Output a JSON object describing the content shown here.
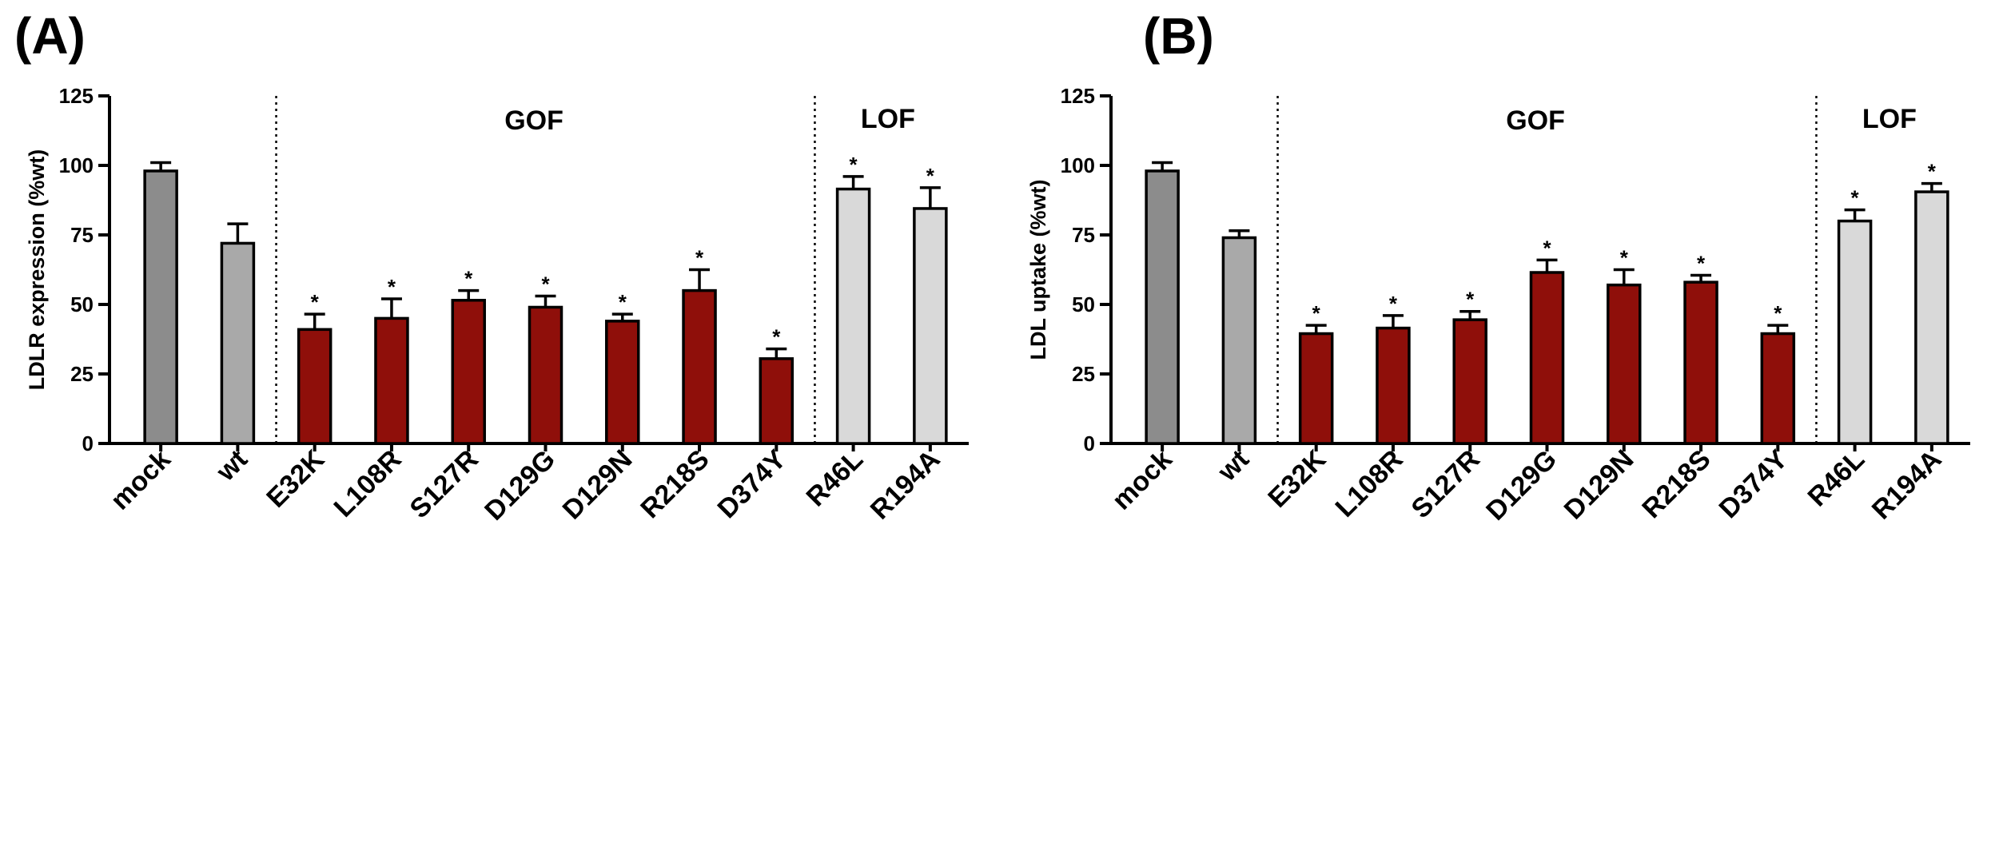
{
  "chart_data": [
    {
      "panel": "(A)",
      "type": "bar",
      "title": "",
      "xlabel": "",
      "ylabel": "LDLR expression (%wt)",
      "ylim": [
        0,
        125
      ],
      "yticks": [
        "0",
        "25",
        "50",
        "75",
        "100",
        "125"
      ],
      "categories": [
        "mock",
        "wt",
        "E32K",
        "L108R",
        "S127R",
        "D129G",
        "D129N",
        "R218S",
        "D374Y",
        "R46L",
        "R194A"
      ],
      "values": [
        98,
        72,
        41,
        45,
        51.5,
        49,
        44,
        55,
        30.5,
        91.5,
        84.5
      ],
      "errors": [
        3,
        7,
        5.5,
        7,
        3.5,
        4,
        2.5,
        7.5,
        3.5,
        4.5,
        7.5
      ],
      "significant": [
        false,
        false,
        true,
        true,
        true,
        true,
        true,
        true,
        true,
        true,
        true
      ],
      "significance_marker": "*",
      "groups": [
        "mock",
        "wt",
        "GOF",
        "GOF",
        "GOF",
        "GOF",
        "GOF",
        "GOF",
        "GOF",
        "LOF",
        "LOF"
      ],
      "group_labels": {
        "gof": "GOF",
        "lof": "LOF"
      },
      "grid": false
    },
    {
      "panel": "(B)",
      "type": "bar",
      "title": "",
      "xlabel": "",
      "ylabel": "LDL uptake (%wt)",
      "ylim": [
        0,
        125
      ],
      "yticks": [
        "0",
        "25",
        "50",
        "75",
        "100",
        "125"
      ],
      "categories": [
        "mock",
        "wt",
        "E32K",
        "L108R",
        "S127R",
        "D129G",
        "D129N",
        "R218S",
        "D374Y",
        "R46L",
        "R194A"
      ],
      "values": [
        98,
        74,
        39.5,
        41.5,
        44.5,
        61.5,
        57,
        58,
        39.5,
        80,
        90.5
      ],
      "errors": [
        3,
        2.5,
        3,
        4.5,
        3,
        4.5,
        5.5,
        2.5,
        3,
        4,
        3
      ],
      "significant": [
        false,
        false,
        true,
        true,
        true,
        true,
        true,
        true,
        true,
        true,
        true
      ],
      "significance_marker": "*",
      "groups": [
        "mock",
        "wt",
        "GOF",
        "GOF",
        "GOF",
        "GOF",
        "GOF",
        "GOF",
        "GOF",
        "LOF",
        "LOF"
      ],
      "group_labels": {
        "gof": "GOF",
        "lof": "LOF"
      },
      "grid": false
    }
  ],
  "colors": {
    "mock": "#8c8c8c",
    "wt": "#a9a9a9",
    "GOF": "#8f0f0a",
    "LOF": "#d9d9d9",
    "axis": "#000000"
  }
}
